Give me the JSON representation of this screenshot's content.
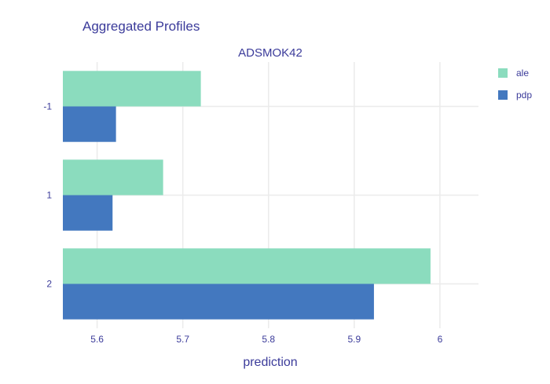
{
  "title": "Aggregated Profiles",
  "chart_data": {
    "type": "bar",
    "orientation": "horizontal",
    "title": "Aggregated Profiles",
    "subtitle": "ADSMOK42",
    "xlabel": "prediction",
    "ylabel": "",
    "xlim": [
      5.56,
      6.045
    ],
    "xticks": [
      5.6,
      5.7,
      5.8,
      5.9,
      6
    ],
    "categories": [
      "-1",
      "1",
      "2"
    ],
    "series": [
      {
        "name": "ale",
        "color": "#8bdcbe",
        "values": [
          5.721,
          5.677,
          5.989
        ]
      },
      {
        "name": "pdp",
        "color": "#4378bf",
        "values": [
          5.622,
          5.618,
          5.923
        ]
      }
    ],
    "legend_position": "top-right",
    "grid": true
  }
}
